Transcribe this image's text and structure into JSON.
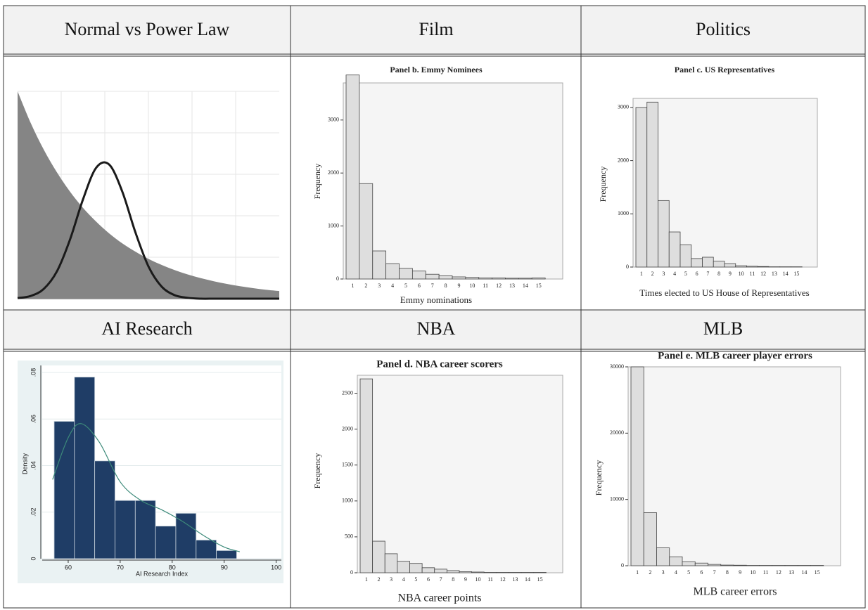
{
  "headers": [
    "Normal vs Power Law",
    "Film",
    "Politics",
    "AI Research",
    "NBA",
    "MLB"
  ],
  "chart_data": [
    {
      "type": "line",
      "x": [
        0,
        0.5,
        1,
        1.5,
        2,
        2.5,
        3,
        3.5,
        4,
        4.5,
        5,
        5.5,
        6,
        6.5,
        7,
        7.5,
        8,
        8.5,
        9,
        9.5,
        10
      ],
      "xlim": [
        0,
        10
      ],
      "ylim": [
        0,
        1
      ],
      "grid": true,
      "series": [
        {
          "color": "#858585",
          "fill": true,
          "values": [
            1,
            0.848,
            0.719,
            0.61,
            0.517,
            0.438,
            0.372,
            0.315,
            0.267,
            0.227,
            0.192,
            0.163,
            0.138,
            0.117,
            0.099,
            0.084,
            0.071,
            0.06,
            0.051,
            0.043,
            0.037
          ]
        },
        {
          "color": "#1a1a1a",
          "fill": false,
          "values": [
            0.003,
            0.013,
            0.047,
            0.131,
            0.284,
            0.479,
            0.631,
            0.647,
            0.517,
            0.321,
            0.156,
            0.059,
            0.017,
            0.004,
            0,
            0,
            0,
            0,
            0,
            0,
            0
          ]
        }
      ]
    },
    {
      "type": "bar",
      "title": "Panel b. Emmy Nominees",
      "ylabel": "Frequency",
      "xlabel": "Emmy nominations",
      "categories": [
        "1",
        "2",
        "3",
        "4",
        "5",
        "6",
        "7",
        "8",
        "9",
        "10",
        "11",
        "12",
        "13",
        "14",
        "15"
      ],
      "values": [
        3850,
        1800,
        530,
        290,
        200,
        150,
        90,
        60,
        40,
        30,
        20,
        20,
        15,
        15,
        20
      ],
      "ylim": [
        0,
        3700
      ],
      "yticks": [
        0,
        1000,
        2000,
        3000
      ],
      "color": "#dedede"
    },
    {
      "type": "bar",
      "title": "Panel c. US Representatives",
      "ylabel": "Frequency",
      "xlabel": "Times elected to US House of Representatives",
      "categories": [
        "1",
        "2",
        "3",
        "4",
        "5",
        "6",
        "7",
        "8",
        "9",
        "10",
        "11",
        "12",
        "13",
        "14",
        "15"
      ],
      "values": [
        3000,
        3100,
        1250,
        660,
        420,
        160,
        185,
        110,
        65,
        25,
        15,
        10,
        5,
        5,
        5
      ],
      "ylim": [
        0,
        3170
      ],
      "yticks": [
        0,
        1000,
        2000,
        3000
      ],
      "color": "#dedede"
    },
    {
      "type": "histogram",
      "ylabel": "Density",
      "xlabel": "AI Research Index",
      "bins": [
        57.3,
        61.2,
        65.1,
        69,
        72.9,
        76.8,
        80.7,
        84.6,
        88.5,
        92.4
      ],
      "values": [
        0.059,
        0.078,
        0.042,
        0.025,
        0.025,
        0.014,
        0.0195,
        0.008,
        0.0035
      ],
      "color": "#1f3d66",
      "xlim": [
        55,
        101
      ],
      "ylim": [
        0,
        0.083
      ],
      "xticks": [
        60,
        70,
        80,
        90,
        100
      ],
      "yticks": [
        0,
        {
          "value": 0.02,
          "label": ".02"
        },
        {
          "value": 0.04,
          "label": ".04"
        },
        {
          "value": 0.06,
          "label": ".06"
        },
        {
          "value": 0.08,
          "label": ".08"
        }
      ],
      "grid": true,
      "density_line": {
        "x": [
          57,
          60,
          62.5,
          66,
          70,
          74,
          78,
          82,
          86,
          90,
          93
        ],
        "values": [
          0.034,
          0.052,
          0.058,
          0.05,
          0.033,
          0.025,
          0.021,
          0.016,
          0.01,
          0.005,
          0.003
        ],
        "color": "#3d8a7a"
      }
    },
    {
      "type": "bar",
      "title": "Panel d. NBA career scorers",
      "ylabel": "Frequency",
      "xlabel": "NBA career points",
      "categories": [
        "1",
        "2",
        "3",
        "4",
        "5",
        "6",
        "7",
        "8",
        "9",
        "10",
        "11",
        "12",
        "13",
        "14",
        "15"
      ],
      "values": [
        2700,
        440,
        265,
        160,
        130,
        70,
        50,
        30,
        15,
        10,
        5,
        5,
        5,
        5,
        5
      ],
      "ylim": [
        0,
        2750
      ],
      "yticks": [
        0,
        500,
        1000,
        1500,
        2000,
        2500
      ],
      "color": "#dedede"
    },
    {
      "type": "bar",
      "title": "Panel e. MLB career player errors",
      "ylabel": "Frequency",
      "xlabel": "MLB career errors",
      "categories": [
        "1",
        "2",
        "3",
        "4",
        "5",
        "6",
        "7",
        "8",
        "9",
        "10",
        "11",
        "12",
        "13",
        "14",
        "15"
      ],
      "values": [
        30000,
        8000,
        2700,
        1350,
        600,
        400,
        200,
        100,
        80,
        50,
        50,
        50,
        50,
        50,
        50
      ],
      "ylim": [
        0,
        30000
      ],
      "yticks": [
        0,
        10000,
        20000,
        30000
      ],
      "color": "#dedede"
    }
  ]
}
